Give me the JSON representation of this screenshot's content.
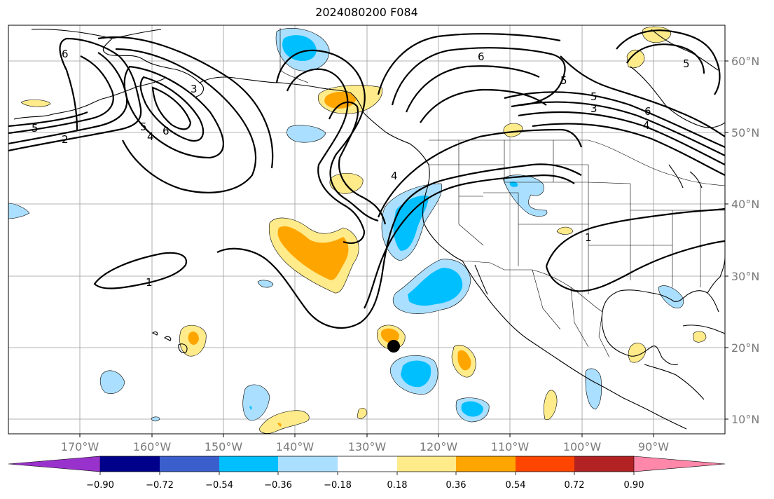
{
  "title": "2024080200 F084",
  "map": {
    "lat_labels": [
      "60°N",
      "50°N",
      "40°N",
      "30°N",
      "20°N",
      "10°N"
    ],
    "lon_labels": [
      "170°W",
      "160°W",
      "150°W",
      "140°W",
      "130°W",
      "120°W",
      "110°W",
      "100°W",
      "90°W"
    ],
    "contour_labels": [
      "6",
      "5",
      "3",
      "5",
      "6",
      "4",
      "2",
      "1",
      "4",
      "6",
      "5",
      "3",
      "6",
      "4",
      "5",
      "5",
      "1"
    ],
    "marker": "black dot"
  },
  "colorbar": {
    "tick_labels": [
      "−0.90",
      "−0.72",
      "−0.54",
      "−0.36",
      "−0.18",
      "0.18",
      "0.36",
      "0.54",
      "0.72",
      "0.90"
    ],
    "colors": [
      "#9932cc",
      "#00008b",
      "#3a5fcd",
      "#00bfff",
      "#aadfff",
      "#ffffff",
      "#ffeb8a",
      "#ffa500",
      "#ff4500",
      "#b22222",
      "#ff88aa"
    ]
  }
}
